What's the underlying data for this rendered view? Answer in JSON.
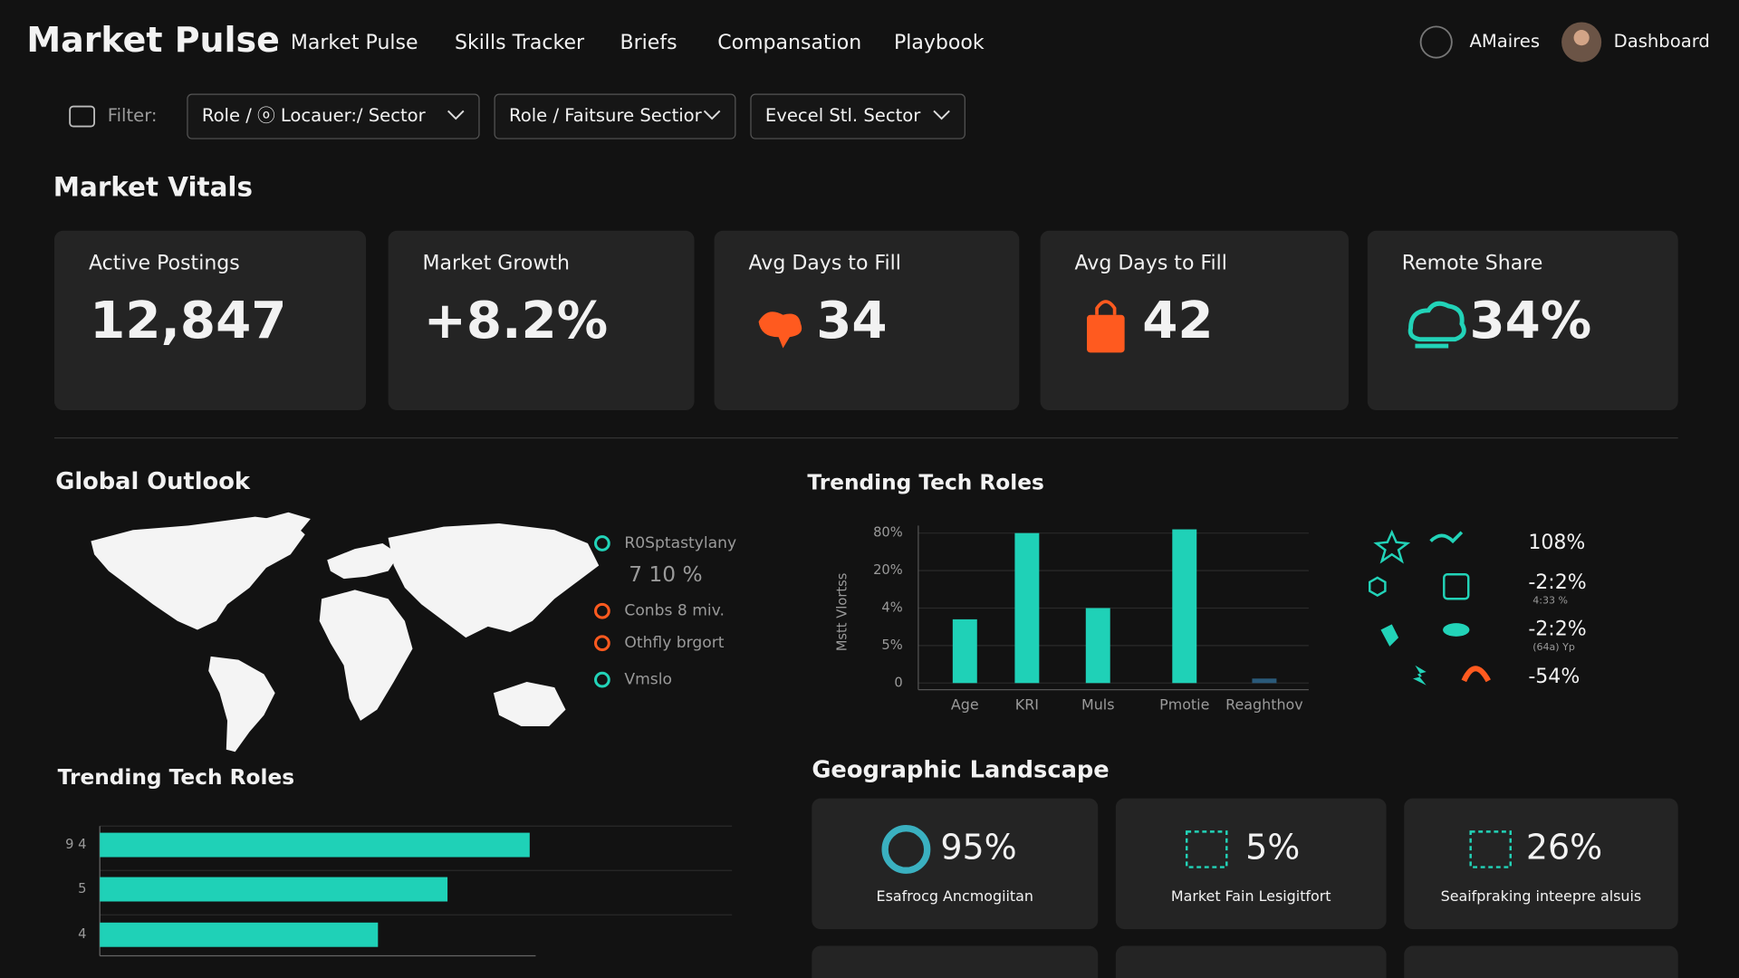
{
  "header": {
    "brand": "Market Pulse",
    "nav": [
      "Market Pulse",
      "Skills Tracker",
      "Briefs",
      "Compansation",
      "Playbook"
    ],
    "user": "AMaires",
    "dashboard": "Dashboard"
  },
  "filters": {
    "label": "Filter:",
    "options": [
      "Role / ⓞ Locauer:/ Sector",
      "Role / Faitsure Sectior",
      "Evecel Stl. Sector"
    ]
  },
  "vitals": {
    "title": "Market Vitals",
    "cards": [
      {
        "label": "Active Postings",
        "value": "12,847"
      },
      {
        "label": "Market Growth",
        "value": "+8.2%"
      },
      {
        "label": "Avg Days to Fill",
        "value": "34"
      },
      {
        "label": "Avg Days to Fill",
        "value": "42"
      },
      {
        "label": "Remote Share",
        "value": "34%"
      }
    ]
  },
  "global_outlook": {
    "title": "Global Outlook",
    "legend": [
      "R0Sptastylany",
      "7 10 %",
      "Conbs 8 miv.",
      "Othfly brgort",
      "Vmslo"
    ]
  },
  "trending_roles_chart": {
    "type": "bar",
    "title": "Trending Tech Roles",
    "y_label": "Mstt Vlortss",
    "categories": [
      "Age",
      "KRI",
      "Muls",
      "Pmotie",
      "Reaghthov"
    ],
    "values": [
      1.7,
      4.0,
      2.0,
      4.1,
      0.12
    ],
    "ylim": [
      0,
      4.2
    ],
    "yticks": [
      0,
      {
        "value": 1,
        "label": "5%"
      },
      {
        "value": 2,
        "label": "4%"
      },
      {
        "value": 3,
        "label": "20%"
      },
      {
        "value": 4,
        "label": "80%"
      }
    ],
    "color": "#1fd1b7"
  },
  "trend_list": {
    "items": [
      {
        "value": "108%"
      },
      {
        "value": "-2:2%",
        "note": "4:33 %"
      },
      {
        "value": "-2:2%",
        "note": "(64a) Yp"
      },
      {
        "value": "-54%"
      }
    ]
  },
  "trending_roles_hbar": {
    "type": "hbar",
    "title": "Trending Tech Roles",
    "categories": [
      "9 4",
      "5",
      "4"
    ],
    "values": [
      68,
      55,
      44
    ],
    "xlim": [
      0,
      100
    ],
    "color": "#1fd1b7"
  },
  "geographic": {
    "title": "Geographic Landscape",
    "cards": [
      {
        "value": "95%",
        "label": "Esafrocg Ancmogiitan"
      },
      {
        "value": "5%",
        "label": "Market Fain Lesigitfort"
      },
      {
        "value": "26%",
        "label": "Seaifpraking inteepre alsuis"
      }
    ]
  }
}
